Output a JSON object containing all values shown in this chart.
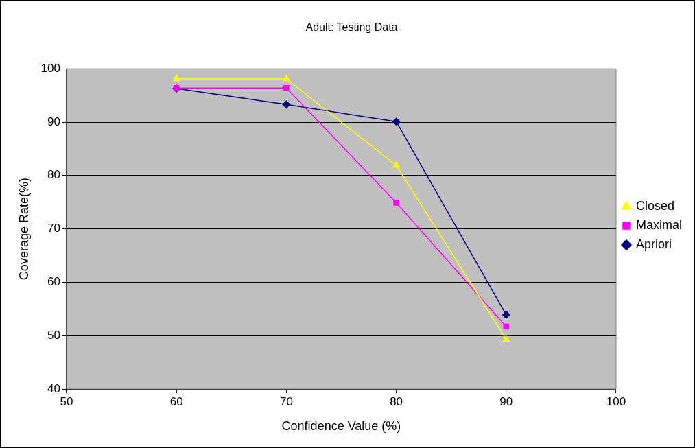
{
  "chart_data": {
    "type": "line",
    "title": "Adult: Testing Data",
    "xlabel": "Confidence Value (%)",
    "ylabel": "Coverage Rate(%)",
    "x": [
      60,
      70,
      80,
      90
    ],
    "series": [
      {
        "name": "Apriori",
        "color": "#000080",
        "marker": "diamond",
        "values": [
          96.3,
          93.3,
          90.1,
          53.9
        ]
      },
      {
        "name": "Maximal",
        "color": "#ff00ff",
        "marker": "square",
        "values": [
          96.4,
          96.4,
          74.9,
          51.7
        ]
      },
      {
        "name": "Closed",
        "color": "#ffff00",
        "marker": "triangle",
        "values": [
          98.1,
          98.1,
          81.9,
          49.3
        ]
      }
    ],
    "xlim": [
      50,
      100
    ],
    "xticks": [
      50,
      60,
      70,
      80,
      90,
      100
    ],
    "ylim": [
      40,
      100
    ],
    "yticks": [
      40,
      50,
      60,
      70,
      80,
      90,
      100
    ],
    "grid": "y",
    "legend": "right",
    "line_style": "solid"
  }
}
